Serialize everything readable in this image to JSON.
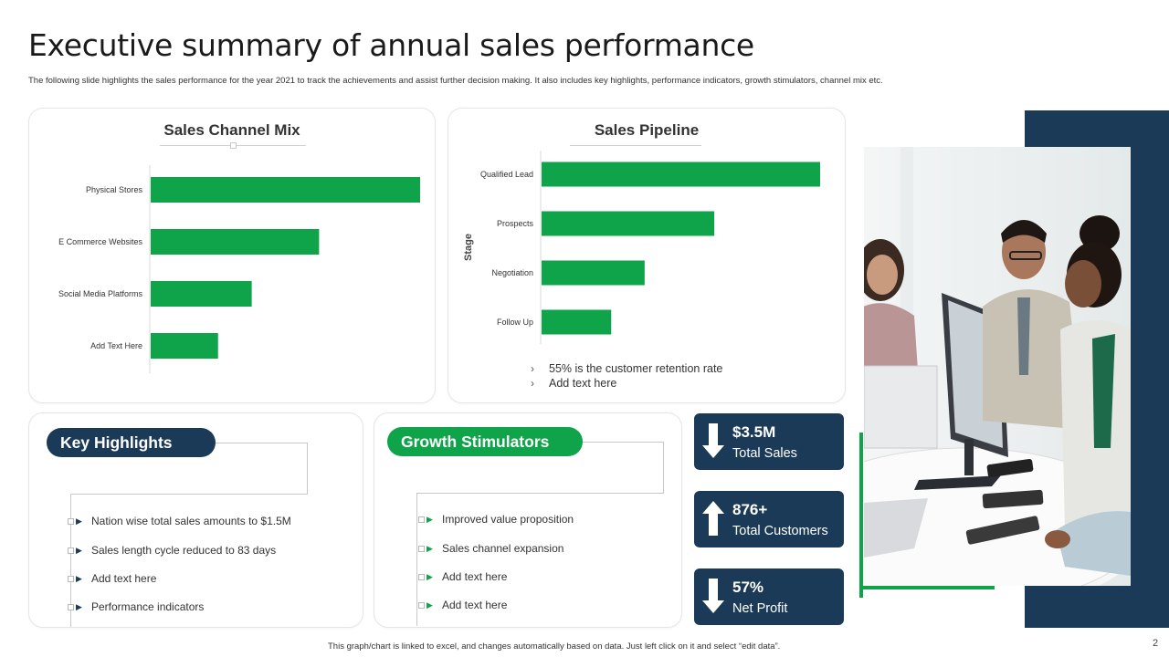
{
  "slide": {
    "title": "Executive summary of annual sales performance",
    "subtitle": "The following slide highlights the sales performance for the year 2021 to track the achievements and assist further decision making. It also includes key highlights, performance indicators, growth stimulators, channel mix etc.",
    "footer": "This graph/chart is linked to excel, and changes automatically based on data. Just left click on it and select “edit data”.",
    "page_number": "2"
  },
  "colors": {
    "accent_green": "#0fa44a",
    "navy": "#1b3a57"
  },
  "chart_data": [
    {
      "type": "bar",
      "orientation": "horizontal",
      "title": "Sales Channel Mix",
      "categories": [
        "Physical Stores",
        "E Commerce Websites",
        "Social Media Platforms",
        "Add Text Here"
      ],
      "values": [
        80,
        50,
        30,
        20
      ],
      "xlabel": "",
      "ylabel": "",
      "grid": false,
      "color": "#0fa44a"
    },
    {
      "type": "bar",
      "orientation": "horizontal",
      "title": "Sales Pipeline",
      "categories": [
        "Qualified Lead",
        "Prospects",
        "Negotiation",
        "Follow Up"
      ],
      "values": [
        100,
        62,
        37,
        25
      ],
      "xlabel": "",
      "ylabel": "Stage",
      "grid": false,
      "color": "#0fa44a"
    }
  ],
  "pipeline_notes": [
    "55% is the customer retention rate",
    "Add text here"
  ],
  "key_highlights": {
    "title": "Key Highlights",
    "items": [
      "Nation wise total sales amounts to $1.5M",
      "Sales length cycle reduced to 83 days",
      "Add text here",
      "Performance indicators"
    ]
  },
  "growth_stimulators": {
    "title": "Growth Stimulators",
    "items": [
      "Improved value proposition",
      "Sales channel expansion",
      "Add text here",
      "Add text here"
    ]
  },
  "kpis": [
    {
      "value": "$3.5M",
      "label": "Total Sales",
      "arrow": "down-arrow-icon"
    },
    {
      "value": "876+",
      "label": "Total Customers",
      "arrow": "up-arrow-icon"
    },
    {
      "value": "57%",
      "label": "Net Profit",
      "arrow": "down-arrow-icon"
    }
  ]
}
